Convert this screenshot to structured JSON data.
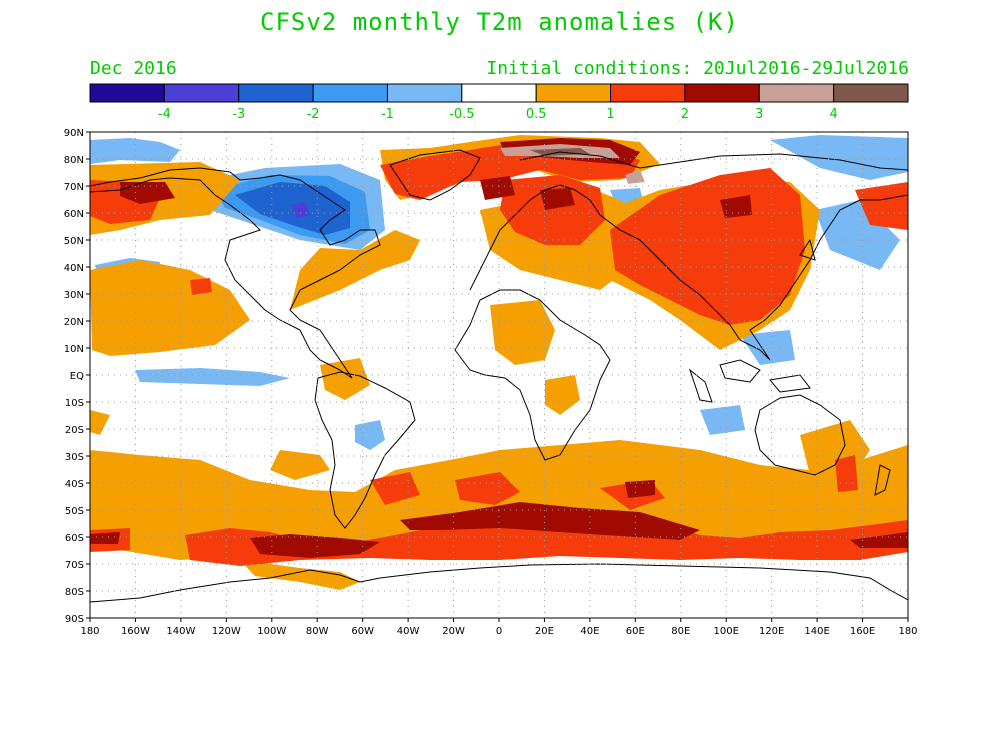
{
  "header": {
    "title": "CFSv2 monthly T2m anomalies (K)",
    "valid_month": "Dec 2016",
    "initial_conditions": "Initial conditions: 20Jul2016-29Jul2016"
  },
  "colorbar": {
    "colors": [
      "#1e0a96",
      "#4c3fd6",
      "#1e63d0",
      "#3c9af0",
      "#78b8f5",
      "#ffffff",
      "#f5a000",
      "#f53c0a",
      "#a00a00",
      "#c8a098",
      "#80584c"
    ],
    "labels": [
      "-4",
      "-3",
      "-2",
      "-1",
      "-0.5",
      "0.5",
      "1",
      "2",
      "3",
      "4"
    ]
  },
  "map": {
    "lat_labels": [
      "90N",
      "80N",
      "70N",
      "60N",
      "50N",
      "40N",
      "30N",
      "20N",
      "10N",
      "EQ",
      "10S",
      "20S",
      "30S",
      "40S",
      "50S",
      "60S",
      "70S",
      "80S",
      "90S"
    ],
    "lon_labels": [
      "180",
      "160W",
      "140W",
      "120W",
      "100W",
      "80W",
      "60W",
      "40W",
      "20W",
      "0",
      "20E",
      "40E",
      "60E",
      "80E",
      "100E",
      "120E",
      "140E",
      "160E",
      "180"
    ],
    "grid": "dotted"
  }
}
